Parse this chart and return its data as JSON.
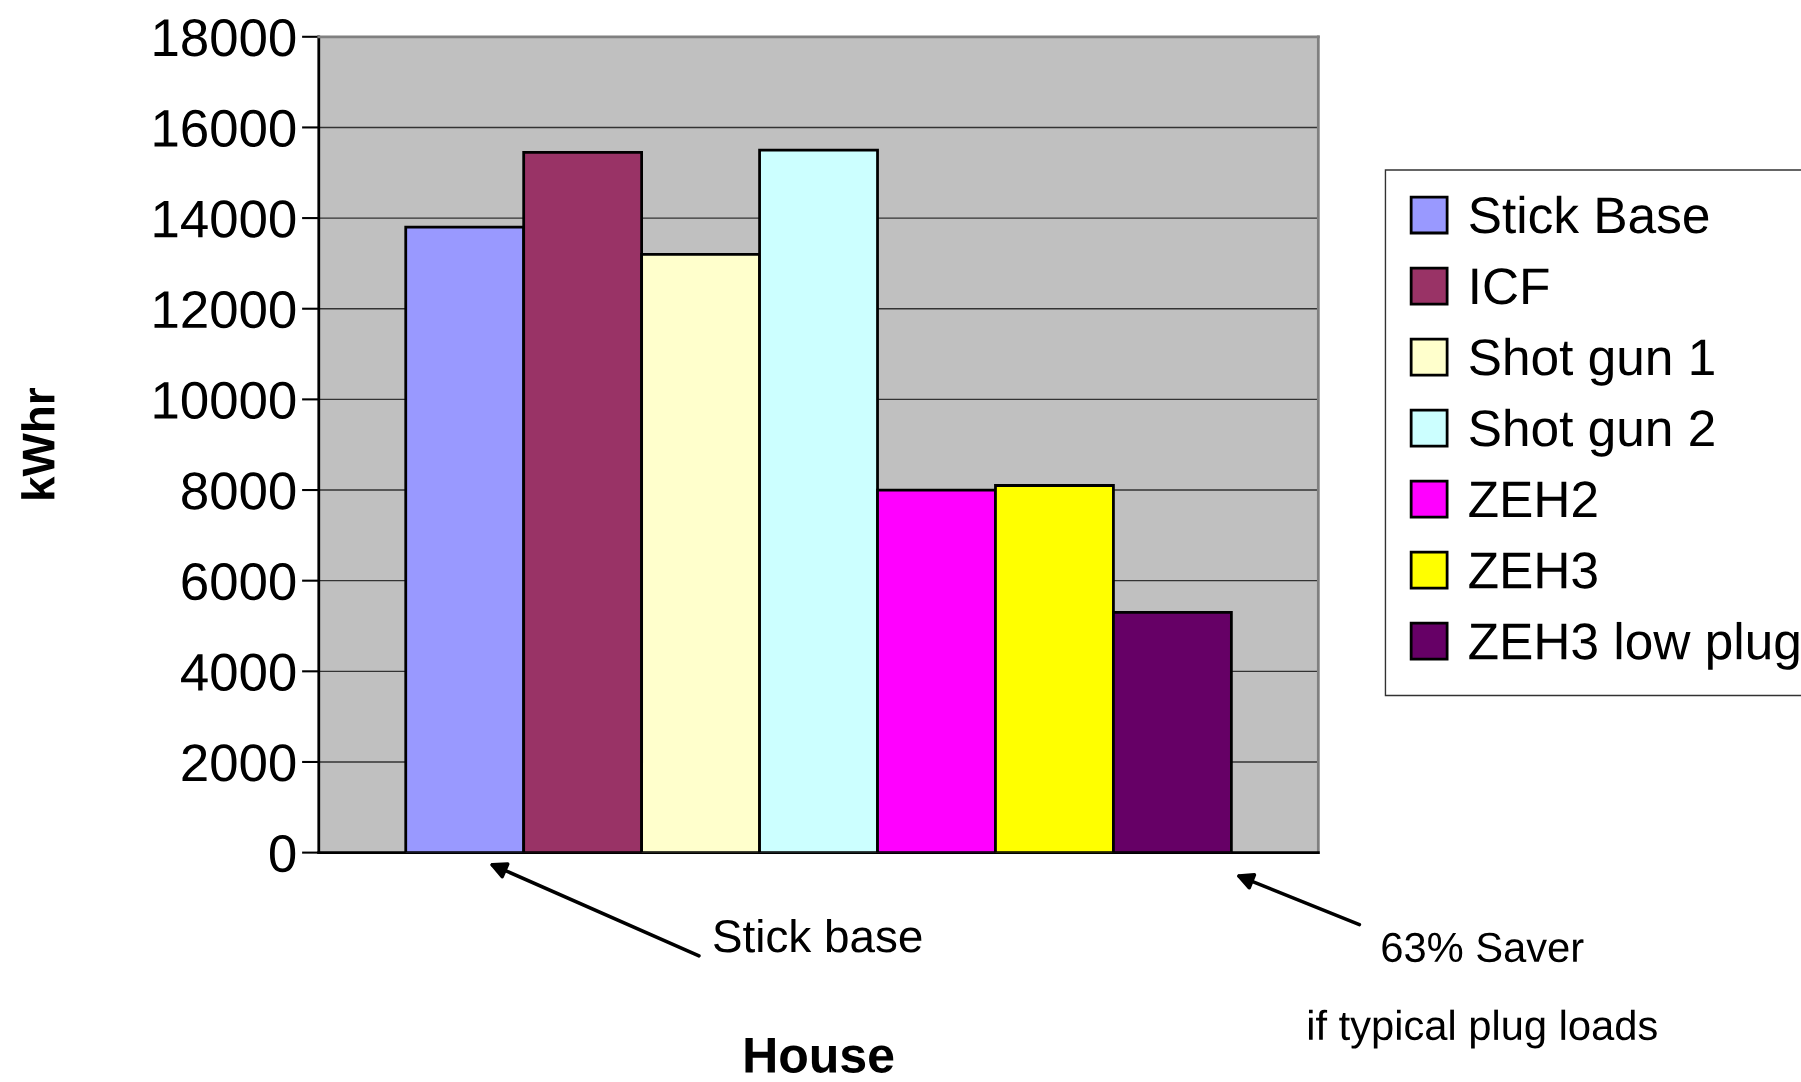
{
  "chart_data": {
    "type": "bar",
    "xlabel": "House",
    "ylabel": "kWhr",
    "categories": [
      null
    ],
    "series": [
      {
        "name": "Stick Base",
        "color": "#9999ff",
        "values": [
          13800
        ]
      },
      {
        "name": "ICF",
        "color": "#993366",
        "values": [
          15450
        ]
      },
      {
        "name": "Shot gun 1",
        "color": "#ffffcc",
        "values": [
          13200
        ]
      },
      {
        "name": "Shot gun 2",
        "color": "#ccffff",
        "values": [
          15500
        ]
      },
      {
        "name": "ZEH2",
        "color": "#ff00ff",
        "values": [
          8000
        ]
      },
      {
        "name": "ZEH3",
        "color": "#ffff00",
        "values": [
          8100
        ]
      },
      {
        "name": "ZEH3 low plug",
        "color": "#660066",
        "values": [
          5300
        ]
      }
    ],
    "ylim": [
      0,
      18000
    ],
    "yticks": [
      0,
      2000,
      4000,
      6000,
      8000,
      10000,
      12000,
      14000,
      16000,
      18000
    ],
    "grid": "y",
    "legend": "right",
    "annotations": [
      "Stick base",
      "63% Saver\nif typical plug loads"
    ]
  }
}
